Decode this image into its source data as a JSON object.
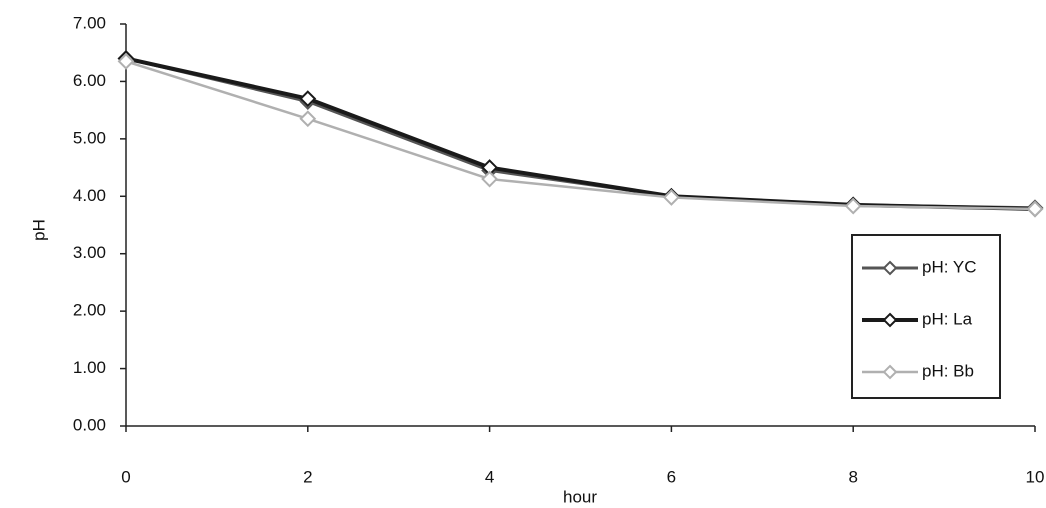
{
  "chart_data": {
    "type": "line",
    "x_label": "hour",
    "y_label": "pH",
    "x": [
      0,
      2,
      4,
      6,
      8,
      10
    ],
    "series": [
      {
        "name": "pH: YC",
        "color": "#555555",
        "values": [
          6.4,
          5.65,
          4.45,
          4.0,
          3.85,
          3.8
        ]
      },
      {
        "name": "pH: La",
        "color": "#1a1a1a",
        "values": [
          6.4,
          5.7,
          4.5,
          4.0,
          3.85,
          3.78
        ]
      },
      {
        "name": "pH: Bb",
        "color": "#b0b0b0",
        "values": [
          6.35,
          5.35,
          4.3,
          3.98,
          3.83,
          3.78
        ]
      }
    ],
    "xlim": [
      0,
      10
    ],
    "xticks": [
      0,
      2,
      4,
      6,
      8,
      10
    ],
    "ylim": [
      0,
      7
    ],
    "yticks": [
      {
        "value": 0,
        "label": "0.00"
      },
      {
        "value": 1,
        "label": "1.00"
      },
      {
        "value": 2,
        "label": "2.00"
      },
      {
        "value": 3,
        "label": "3.00"
      },
      {
        "value": 4,
        "label": "4.00"
      },
      {
        "value": 5,
        "label": "5.00"
      },
      {
        "value": 6,
        "label": "6.00"
      },
      {
        "value": 7,
        "label": "7.00"
      }
    ],
    "legend": "right",
    "grid": false
  }
}
